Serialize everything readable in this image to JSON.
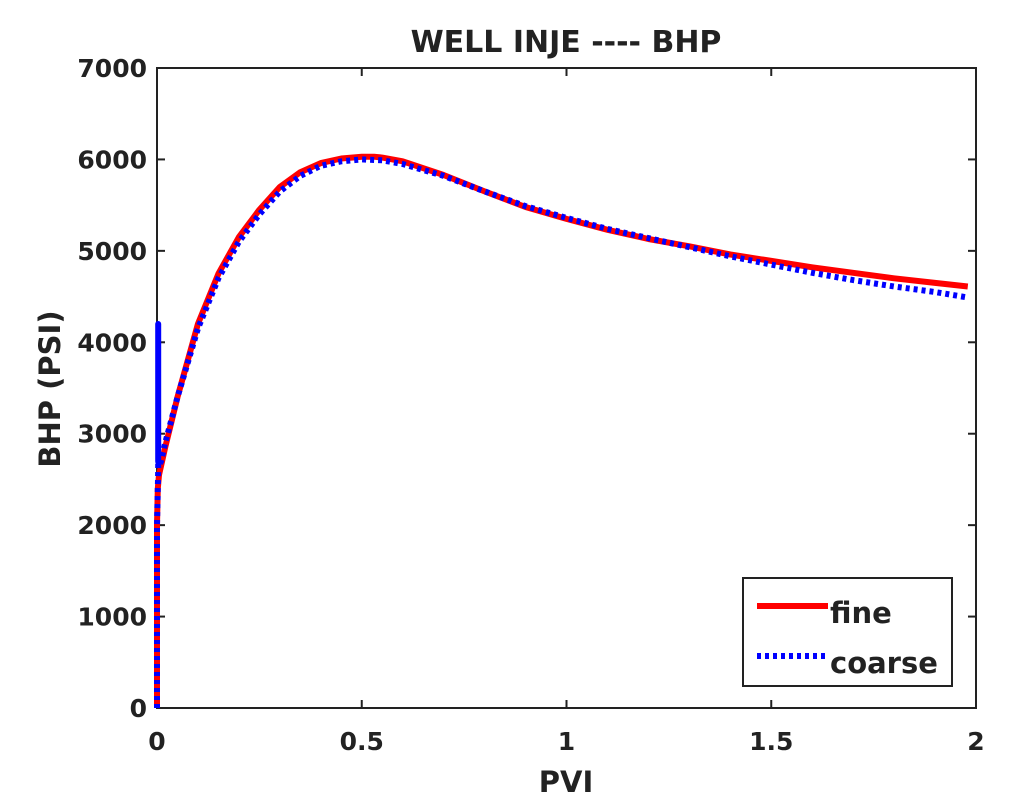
{
  "chart_data": {
    "type": "line",
    "title": "WELL INJE ---- BHP",
    "xlabel": "PVI",
    "ylabel": "BHP (PSI)",
    "xlim": [
      0,
      2
    ],
    "ylim": [
      0,
      7000
    ],
    "x_ticks": [
      0,
      0.5,
      1,
      1.5,
      2
    ],
    "x_tick_labels": [
      "0",
      "0.5",
      "1",
      "1.5",
      "2"
    ],
    "y_ticks": [
      0,
      1000,
      2000,
      3000,
      4000,
      5000,
      6000,
      7000
    ],
    "y_tick_labels": [
      "0",
      "1000",
      "2000",
      "3000",
      "4000",
      "5000",
      "6000",
      "7000"
    ],
    "grid": false,
    "legend_position": "bottom-right",
    "series": [
      {
        "name": "fine",
        "color": "#ff0000",
        "style": "solid",
        "x": [
          0,
          0,
          0.002,
          0.005,
          0.01,
          0.02,
          0.05,
          0.1,
          0.15,
          0.2,
          0.25,
          0.3,
          0.35,
          0.4,
          0.45,
          0.5,
          0.53,
          0.55,
          0.6,
          0.7,
          0.8,
          0.9,
          1.0,
          1.1,
          1.2,
          1.3,
          1.4,
          1.5,
          1.6,
          1.7,
          1.8,
          1.9,
          1.98
        ],
        "y": [
          0,
          2000,
          2400,
          2550,
          2650,
          2850,
          3400,
          4200,
          4750,
          5150,
          5450,
          5700,
          5860,
          5960,
          6010,
          6030,
          6030,
          6020,
          5980,
          5830,
          5650,
          5480,
          5350,
          5230,
          5130,
          5050,
          4960,
          4890,
          4820,
          4760,
          4700,
          4650,
          4610
        ]
      },
      {
        "name": "coarse",
        "color": "#0000ff",
        "style": "dotted",
        "x": [
          0,
          0,
          0.003,
          0.003,
          0.003,
          0.005,
          0.01,
          0.02,
          0.05,
          0.1,
          0.15,
          0.2,
          0.25,
          0.3,
          0.35,
          0.4,
          0.45,
          0.5,
          0.55,
          0.6,
          0.7,
          0.8,
          0.9,
          1.0,
          1.1,
          1.2,
          1.3,
          1.4,
          1.5,
          1.6,
          1.7,
          1.8,
          1.9,
          1.98
        ],
        "y": [
          0,
          2000,
          2600,
          4200,
          2700,
          2650,
          2700,
          2900,
          3400,
          4150,
          4700,
          5100,
          5400,
          5650,
          5820,
          5930,
          5980,
          6000,
          5990,
          5950,
          5820,
          5650,
          5490,
          5360,
          5240,
          5140,
          5040,
          4940,
          4850,
          4760,
          4680,
          4610,
          4550,
          4490
        ]
      }
    ]
  }
}
